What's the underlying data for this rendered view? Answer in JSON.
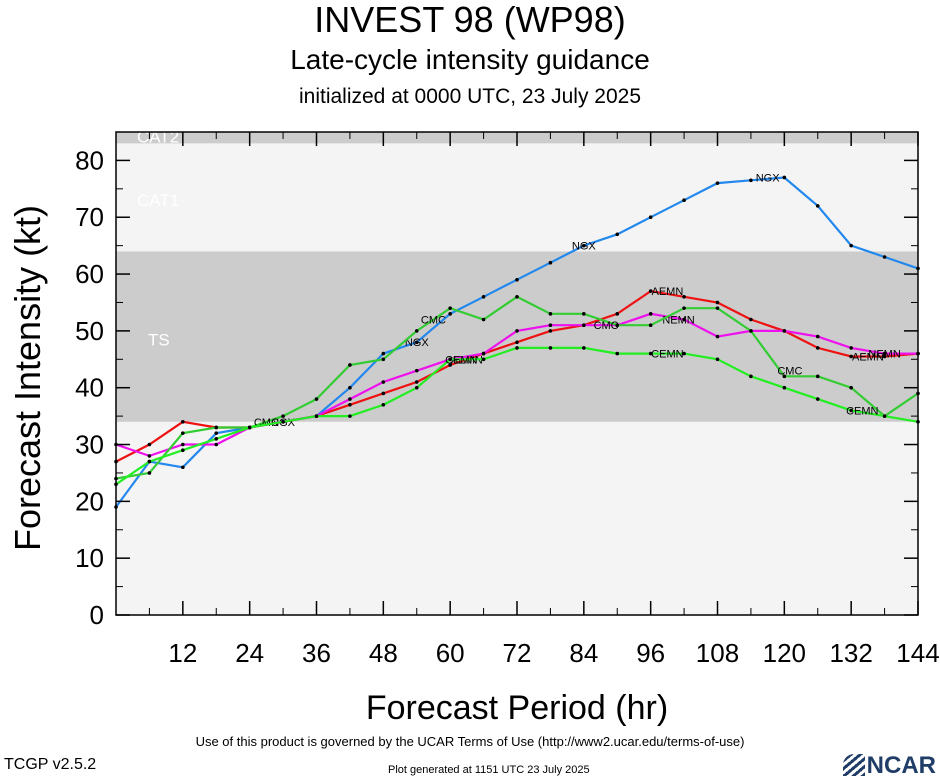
{
  "header": {
    "title": "INVEST 98 (WP98)",
    "subtitle": "Late-cycle intensity guidance",
    "init": "initialized at 0000 UTC, 23 July 2025"
  },
  "footer": {
    "terms": "Use of this product is governed by the UCAR Terms of Use (http://www2.ucar.edu/terms-of-use)",
    "version": "TCGP v2.5.2",
    "generated": "Plot generated at 1151 UTC   23 July 2025",
    "logo": "NCAR"
  },
  "chart_data": {
    "type": "line",
    "xlabel": "Forecast Period (hr)",
    "ylabel": "Forecast Intensity (kt)",
    "xlim": [
      0,
      144
    ],
    "ylim": [
      0,
      85
    ],
    "xticks": [
      12,
      24,
      36,
      48,
      60,
      72,
      84,
      96,
      108,
      120,
      132,
      144
    ],
    "yticks": [
      0,
      10,
      20,
      30,
      40,
      50,
      60,
      70,
      80
    ],
    "bands": [
      {
        "label": "TS",
        "from": 34,
        "to": 64,
        "color": "#cccccc"
      },
      {
        "label": "CAT1",
        "from": 64,
        "to": 83,
        "color": "#f4f4f4"
      },
      {
        "label": "CAT2",
        "from": 83,
        "to": 85,
        "color": "#cccccc"
      }
    ],
    "below_band_color": "#f4f4f4",
    "series": [
      {
        "name": "NGX",
        "color": "#2288ee",
        "x": [
          0,
          6,
          12,
          18,
          24,
          30,
          36,
          42,
          48,
          54,
          60,
          66,
          72,
          78,
          84,
          90,
          96,
          102,
          108,
          114,
          120,
          126,
          132,
          138,
          144
        ],
        "y": [
          19,
          27,
          26,
          32,
          33,
          34,
          35,
          40,
          46,
          48,
          53,
          56,
          59,
          62,
          65,
          67,
          70,
          73,
          76,
          76.5,
          77,
          72,
          65,
          63,
          61
        ],
        "labels": [
          [
            30,
            34
          ],
          [
            54,
            48
          ],
          [
            84,
            65
          ],
          [
            117,
            77
          ]
        ]
      },
      {
        "name": "AEMN",
        "color": "#ee1111",
        "x": [
          0,
          6,
          12,
          18,
          24,
          30,
          36,
          42,
          48,
          54,
          60,
          66,
          72,
          78,
          84,
          90,
          96,
          102,
          108,
          114,
          120,
          126,
          132,
          138,
          144
        ],
        "y": [
          27,
          30,
          34,
          33,
          33,
          34,
          35,
          37,
          39,
          41,
          44,
          46,
          48,
          50,
          51,
          53,
          57,
          56,
          55,
          52,
          50,
          47,
          45.5,
          45.5,
          46
        ],
        "labels": [
          [
            63,
            45
          ],
          [
            99,
            57
          ],
          [
            135,
            45.5
          ]
        ]
      },
      {
        "name": "NEMN",
        "color": "#ee11ee",
        "x": [
          0,
          6,
          12,
          18,
          24,
          30,
          36,
          42,
          48,
          54,
          60,
          66,
          72,
          78,
          84,
          90,
          96,
          102,
          108,
          114,
          120,
          126,
          132,
          138,
          144
        ],
        "y": [
          30,
          28,
          30,
          30,
          33,
          34,
          35,
          38,
          41,
          43,
          45,
          46,
          50,
          51,
          51,
          51,
          53,
          52,
          49,
          50,
          50,
          49,
          47,
          46,
          46
        ],
        "labels": [
          [
            101,
            52
          ],
          [
            138,
            46
          ]
        ]
      },
      {
        "name": "CMC",
        "color": "#33cc33",
        "x": [
          0,
          6,
          12,
          18,
          24,
          30,
          36,
          42,
          48,
          54,
          60,
          66,
          72,
          78,
          84,
          90,
          96,
          102,
          108,
          114,
          120,
          126,
          132,
          138,
          144
        ],
        "y": [
          24,
          25,
          32,
          33,
          33,
          35,
          38,
          44,
          45,
          50,
          54,
          52,
          56,
          53,
          53,
          51,
          51,
          54,
          54,
          50,
          42,
          42,
          40,
          35,
          39
        ],
        "labels": [
          [
            27,
            34
          ],
          [
            57,
            52
          ],
          [
            88,
            51
          ],
          [
            121,
            43
          ]
        ]
      },
      {
        "name": "CEMN",
        "color": "#22ee22",
        "x": [
          0,
          6,
          12,
          18,
          24,
          30,
          36,
          42,
          48,
          54,
          60,
          66,
          72,
          78,
          84,
          90,
          96,
          102,
          108,
          114,
          120,
          126,
          132,
          138,
          144
        ],
        "y": [
          23,
          27,
          29,
          31,
          33,
          34,
          35,
          35,
          37,
          40,
          45,
          45,
          47,
          47,
          47,
          46,
          46,
          46,
          45,
          42,
          40,
          38,
          36,
          35,
          34
        ],
        "labels": [
          [
            62,
            45
          ],
          [
            99,
            46
          ],
          [
            134,
            36
          ]
        ]
      }
    ]
  }
}
